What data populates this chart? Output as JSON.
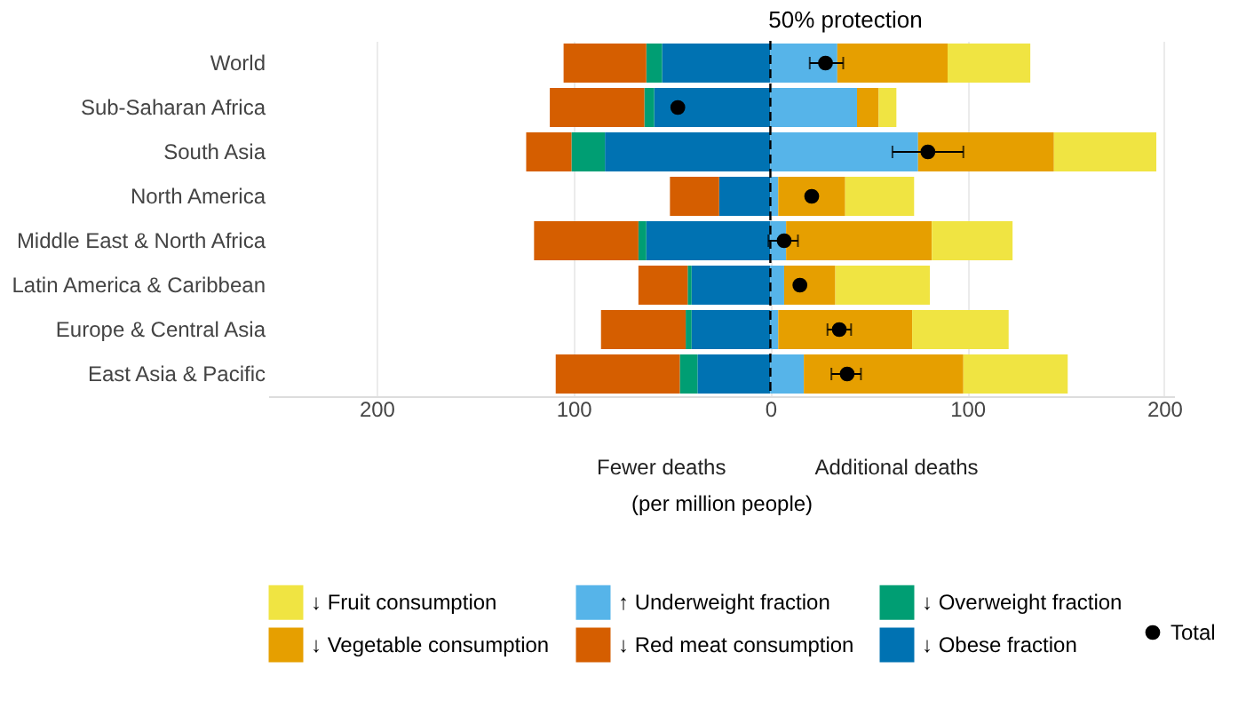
{
  "chart_data": {
    "type": "bar",
    "orientation": "horizontal",
    "stacked": true,
    "title": "50% protection",
    "xlabel": "(per million people)",
    "annotations": [
      "Fewer deaths",
      "Additional deaths"
    ],
    "categories": [
      "World",
      "Sub-Saharan Africa",
      "South Asia",
      "North America",
      "Middle East & North Africa",
      "Latin America & Caribbean",
      "Europe & Central Asia",
      "East Asia & Pacific"
    ],
    "series": [
      {
        "name": "↓ Obese fraction",
        "color": "#0072b2",
        "values": [
          -55,
          -59,
          -84,
          -26,
          -63,
          -40,
          -40,
          -37
        ]
      },
      {
        "name": "↓ Overweight fraction",
        "color": "#009e73",
        "values": [
          -8,
          -5,
          -17,
          0,
          -4,
          -2,
          -3,
          -9
        ]
      },
      {
        "name": "↓ Red meat consumption",
        "color": "#d55e00",
        "values": [
          -42,
          -48,
          -23,
          -25,
          -53,
          -25,
          -43,
          -63
        ]
      },
      {
        "name": "↑ Underweight fraction",
        "color": "#56b4e9",
        "values": [
          34,
          44,
          75,
          4,
          8,
          7,
          4,
          17
        ]
      },
      {
        "name": "↓ Vegetable consumption",
        "color": "#e69f00",
        "values": [
          56,
          11,
          69,
          34,
          74,
          26,
          68,
          81
        ]
      },
      {
        "name": "↓ Fruit consumption",
        "color": "#f0e442",
        "values": [
          42,
          9,
          52,
          35,
          41,
          48,
          49,
          53
        ]
      },
      {
        "name": "Total",
        "type": "scatter",
        "color": "#000000",
        "x": [
          "World",
          "Sub-Saharan Africa",
          "South Asia",
          "North America",
          "Middle East & North Africa",
          "Latin America & Caribbean",
          "Europe & Central Asia",
          "East Asia & Pacific"
        ],
        "values": [
          28,
          -47,
          80,
          21,
          7,
          15,
          35,
          39
        ],
        "errors": [
          [
            20,
            37
          ],
          null,
          [
            62,
            98
          ],
          null,
          [
            -1,
            14
          ],
          null,
          [
            29,
            41
          ],
          [
            31,
            46
          ]
        ]
      }
    ],
    "xlim": [
      -255,
      205
    ],
    "xticks": [
      {
        "value": -200,
        "label": "200"
      },
      {
        "value": -100,
        "label": "100"
      },
      0,
      100,
      200
    ],
    "ref_lines": [
      {
        "axis": "x",
        "value": 0,
        "color": "#000000",
        "line_style": "dashed"
      }
    ],
    "grid": "x",
    "legend": "bottom"
  }
}
